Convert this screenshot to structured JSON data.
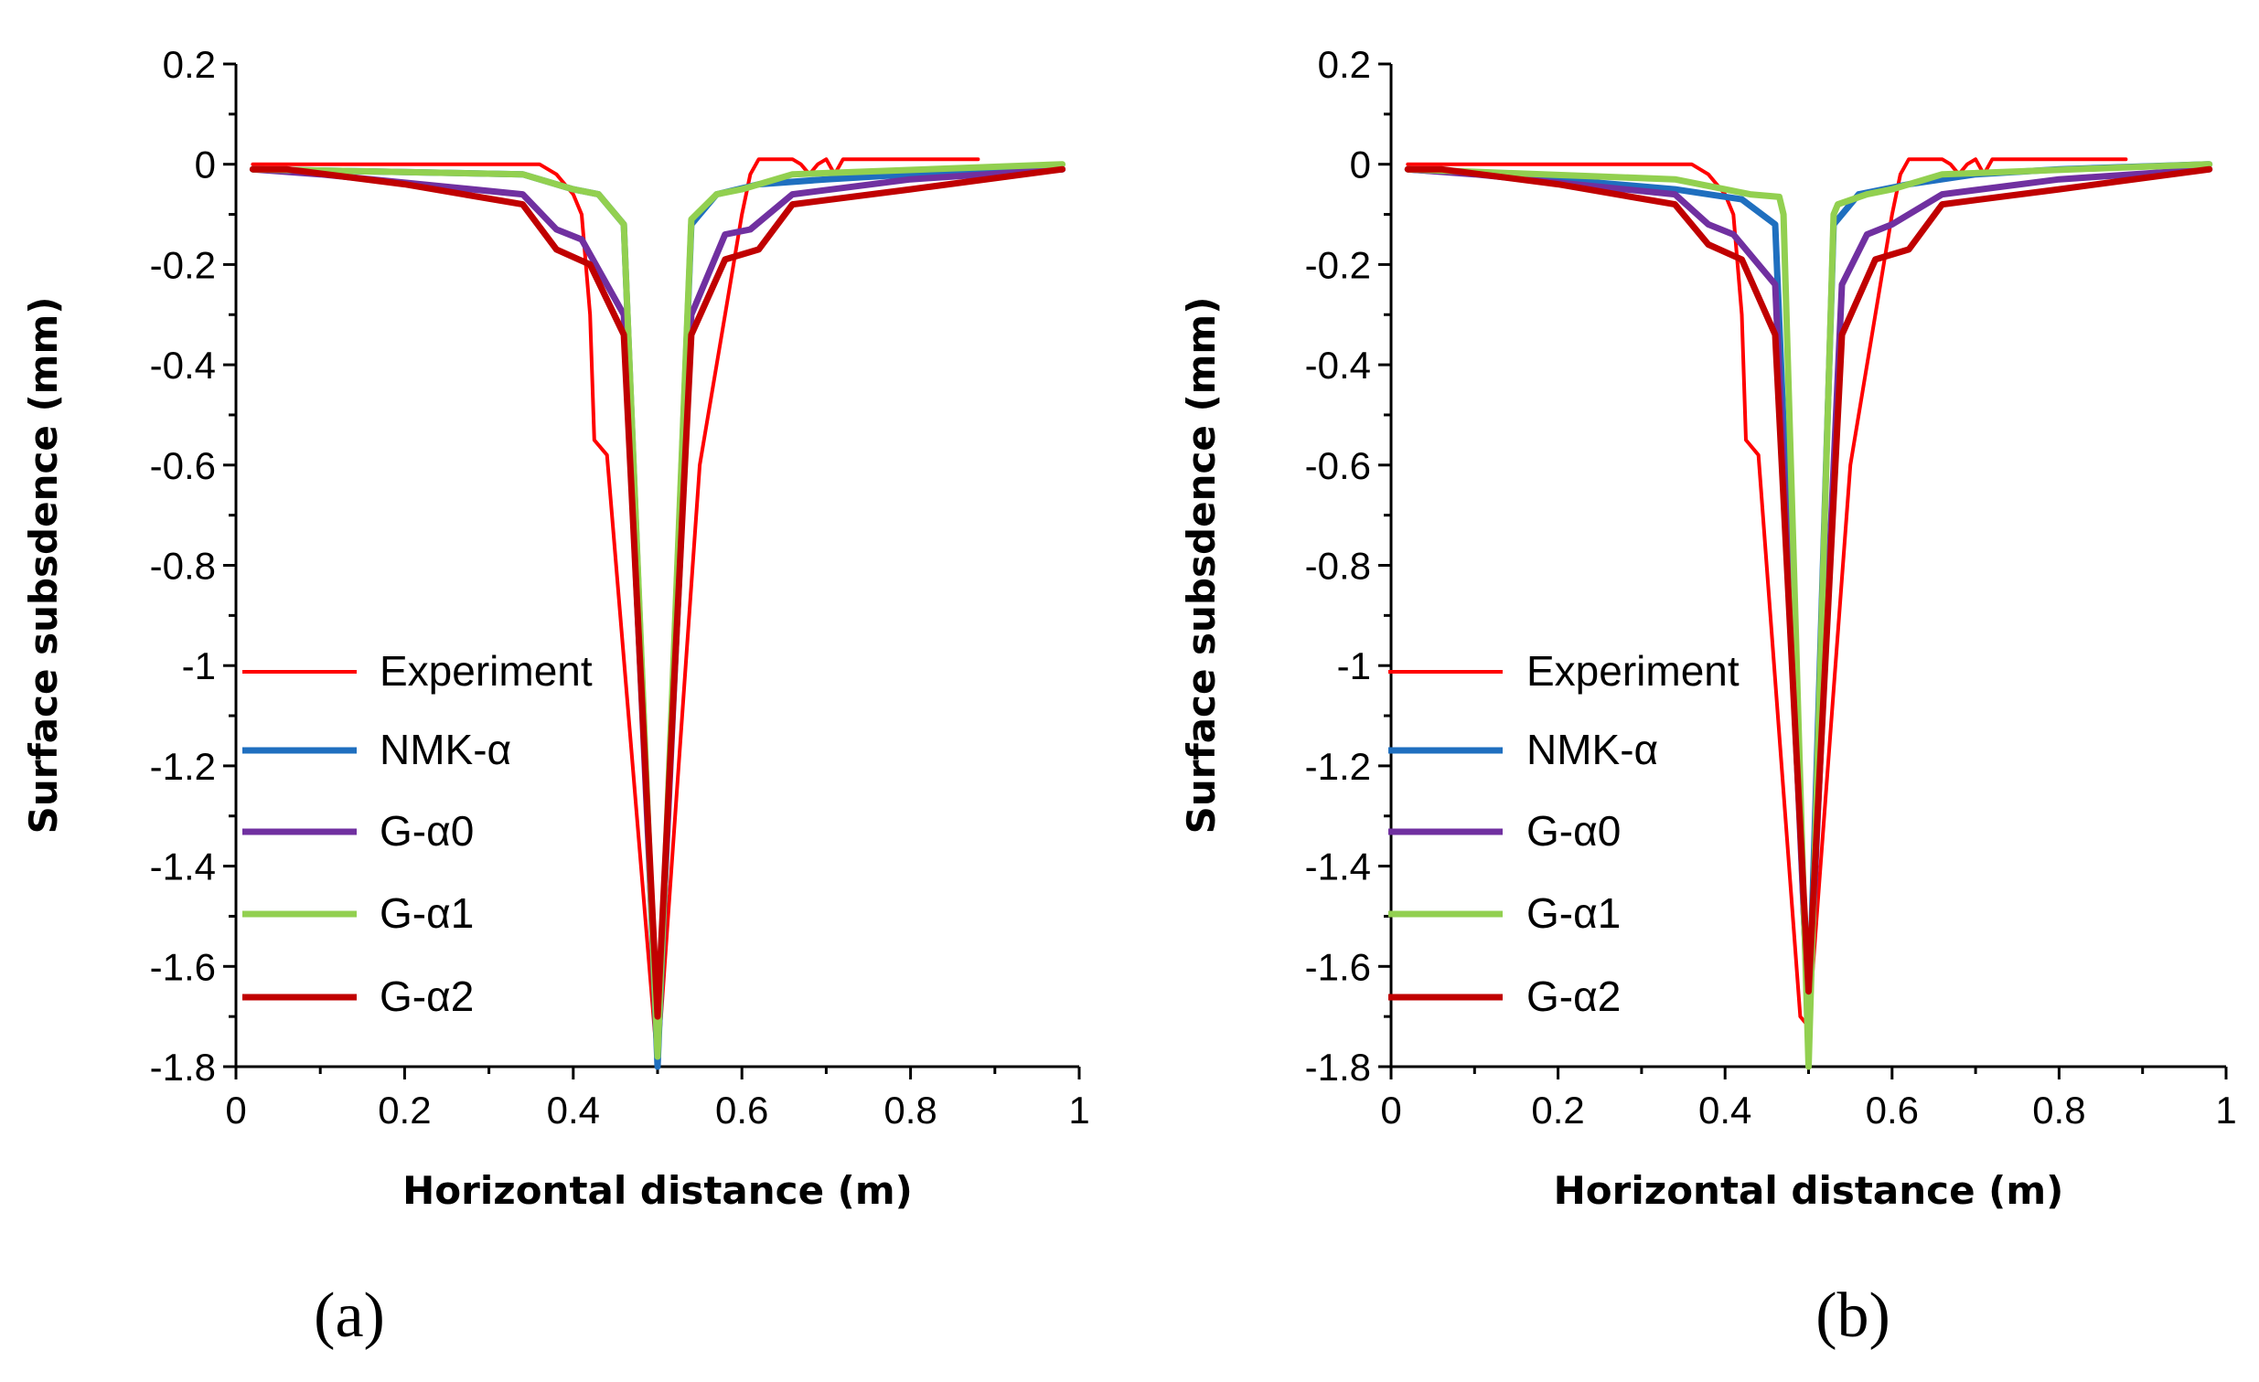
{
  "chart_data": [
    {
      "type": "line",
      "panel": "a",
      "panel_label": "(a)",
      "xlabel": "Horizontal distance (m)",
      "ylabel": "Surface subsdence (mm)",
      "xlim": [
        0,
        1
      ],
      "ylim": [
        -1.8,
        0.2
      ],
      "x_ticks": [
        0,
        0.2,
        0.4,
        0.6,
        0.8,
        1
      ],
      "x_tick_labels": [
        "0",
        "0.2",
        "0.4",
        "0.6",
        "0.8",
        "1"
      ],
      "y_ticks": [
        0.2,
        0,
        -0.2,
        -0.4,
        -0.6,
        -0.8,
        -1,
        -1.2,
        -1.4,
        -1.6,
        -1.8
      ],
      "y_tick_labels": [
        "0.2",
        "0",
        "-0.2",
        "-0.4",
        "-0.6",
        "-0.8",
        "-1",
        "-1.2",
        "-1.4",
        "-1.6",
        "-1.8"
      ],
      "grid": false,
      "legend_position": "bottom-left",
      "series": [
        {
          "name": "Experiment",
          "color": "#ff0000",
          "points": [
            [
              0.02,
              0
            ],
            [
              0.3,
              0
            ],
            [
              0.36,
              0
            ],
            [
              0.38,
              -0.02
            ],
            [
              0.4,
              -0.06
            ],
            [
              0.41,
              -0.1
            ],
            [
              0.42,
              -0.3
            ],
            [
              0.425,
              -0.55
            ],
            [
              0.44,
              -0.58
            ],
            [
              0.5,
              -1.8
            ],
            [
              0.55,
              -0.6
            ],
            [
              0.58,
              -0.3
            ],
            [
              0.6,
              -0.1
            ],
            [
              0.61,
              -0.02
            ],
            [
              0.62,
              0.01
            ],
            [
              0.66,
              0.01
            ],
            [
              0.67,
              0
            ],
            [
              0.68,
              -0.02
            ],
            [
              0.69,
              0
            ],
            [
              0.7,
              0.01
            ],
            [
              0.71,
              -0.02
            ],
            [
              0.72,
              0.01
            ],
            [
              0.88,
              0.01
            ]
          ]
        },
        {
          "name": "NMK-α",
          "color": "#1f6fbf",
          "points": [
            [
              0.02,
              -0.01
            ],
            [
              0.34,
              -0.02
            ],
            [
              0.4,
              -0.05
            ],
            [
              0.43,
              -0.06
            ],
            [
              0.46,
              -0.12
            ],
            [
              0.5,
              -1.8
            ],
            [
              0.54,
              -0.12
            ],
            [
              0.57,
              -0.06
            ],
            [
              0.62,
              -0.04
            ],
            [
              0.7,
              -0.03
            ],
            [
              0.8,
              -0.02
            ],
            [
              0.98,
              -0.01
            ]
          ]
        },
        {
          "name": "G-α0",
          "color": "#7030a0",
          "points": [
            [
              0.02,
              -0.01
            ],
            [
              0.1,
              -0.02
            ],
            [
              0.34,
              -0.06
            ],
            [
              0.38,
              -0.13
            ],
            [
              0.41,
              -0.15
            ],
            [
              0.46,
              -0.3
            ],
            [
              0.5,
              -1.75
            ],
            [
              0.54,
              -0.3
            ],
            [
              0.58,
              -0.14
            ],
            [
              0.61,
              -0.13
            ],
            [
              0.66,
              -0.06
            ],
            [
              0.8,
              -0.03
            ],
            [
              0.98,
              -0.01
            ]
          ]
        },
        {
          "name": "G-α1",
          "color": "#92d050",
          "points": [
            [
              0.02,
              -0.01
            ],
            [
              0.34,
              -0.02
            ],
            [
              0.4,
              -0.05
            ],
            [
              0.43,
              -0.06
            ],
            [
              0.46,
              -0.12
            ],
            [
              0.5,
              -1.78
            ],
            [
              0.54,
              -0.11
            ],
            [
              0.57,
              -0.06
            ],
            [
              0.6,
              -0.05
            ],
            [
              0.66,
              -0.02
            ],
            [
              0.98,
              0
            ]
          ]
        },
        {
          "name": "G-α2",
          "color": "#c00000",
          "points": [
            [
              0.02,
              -0.01
            ],
            [
              0.06,
              -0.01
            ],
            [
              0.2,
              -0.04
            ],
            [
              0.34,
              -0.08
            ],
            [
              0.38,
              -0.17
            ],
            [
              0.42,
              -0.2
            ],
            [
              0.46,
              -0.34
            ],
            [
              0.5,
              -1.7
            ],
            [
              0.54,
              -0.34
            ],
            [
              0.58,
              -0.19
            ],
            [
              0.62,
              -0.17
            ],
            [
              0.66,
              -0.08
            ],
            [
              0.8,
              -0.05
            ],
            [
              0.98,
              -0.01
            ]
          ]
        }
      ]
    },
    {
      "type": "line",
      "panel": "b",
      "panel_label": "(b)",
      "xlabel": "Horizontal distance (m)",
      "ylabel": "Surface subsdence (mm)",
      "xlim": [
        0,
        1
      ],
      "ylim": [
        -1.8,
        0.2
      ],
      "x_ticks": [
        0,
        0.2,
        0.4,
        0.6,
        0.8,
        1
      ],
      "x_tick_labels": [
        "0",
        "0.2",
        "0.4",
        "0.6",
        "0.8",
        "1"
      ],
      "y_ticks": [
        0.2,
        0,
        -0.2,
        -0.4,
        -0.6,
        -0.8,
        -1,
        -1.2,
        -1.4,
        -1.6,
        -1.8
      ],
      "y_tick_labels": [
        "0.2",
        "0",
        "-0.2",
        "-0.4",
        "-0.6",
        "-0.8",
        "-1",
        "-1.2",
        "-1.4",
        "-1.6",
        "-1.8"
      ],
      "grid": false,
      "legend_position": "bottom-left",
      "series": [
        {
          "name": "Experiment",
          "color": "#ff0000",
          "points": [
            [
              0.02,
              0
            ],
            [
              0.3,
              0
            ],
            [
              0.36,
              0
            ],
            [
              0.38,
              -0.02
            ],
            [
              0.4,
              -0.06
            ],
            [
              0.41,
              -0.1
            ],
            [
              0.42,
              -0.3
            ],
            [
              0.425,
              -0.55
            ],
            [
              0.44,
              -0.58
            ],
            [
              0.49,
              -1.7
            ],
            [
              0.5,
              -1.72
            ],
            [
              0.55,
              -0.6
            ],
            [
              0.58,
              -0.3
            ],
            [
              0.6,
              -0.1
            ],
            [
              0.61,
              -0.02
            ],
            [
              0.62,
              0.01
            ],
            [
              0.66,
              0.01
            ],
            [
              0.67,
              0
            ],
            [
              0.68,
              -0.02
            ],
            [
              0.69,
              0
            ],
            [
              0.7,
              0.01
            ],
            [
              0.71,
              -0.02
            ],
            [
              0.72,
              0.01
            ],
            [
              0.88,
              0.01
            ]
          ]
        },
        {
          "name": "NMK-α",
          "color": "#1f6fbf",
          "points": [
            [
              0.02,
              -0.01
            ],
            [
              0.2,
              -0.03
            ],
            [
              0.34,
              -0.05
            ],
            [
              0.42,
              -0.07
            ],
            [
              0.46,
              -0.12
            ],
            [
              0.5,
              -1.72
            ],
            [
              0.53,
              -0.12
            ],
            [
              0.56,
              -0.06
            ],
            [
              0.62,
              -0.04
            ],
            [
              0.7,
              -0.02
            ],
            [
              0.8,
              -0.01
            ],
            [
              0.98,
              0
            ]
          ]
        },
        {
          "name": "G-α0",
          "color": "#7030a0",
          "points": [
            [
              0.02,
              -0.01
            ],
            [
              0.1,
              -0.02
            ],
            [
              0.34,
              -0.06
            ],
            [
              0.38,
              -0.12
            ],
            [
              0.41,
              -0.14
            ],
            [
              0.46,
              -0.24
            ],
            [
              0.5,
              -1.7
            ],
            [
              0.54,
              -0.24
            ],
            [
              0.57,
              -0.14
            ],
            [
              0.6,
              -0.12
            ],
            [
              0.66,
              -0.06
            ],
            [
              0.8,
              -0.03
            ],
            [
              0.98,
              -0.01
            ]
          ]
        },
        {
          "name": "G-α1",
          "color": "#92d050",
          "points": [
            [
              0.02,
              -0.01
            ],
            [
              0.34,
              -0.03
            ],
            [
              0.4,
              -0.05
            ],
            [
              0.43,
              -0.06
            ],
            [
              0.465,
              -0.065
            ],
            [
              0.47,
              -0.1
            ],
            [
              0.5,
              -1.8
            ],
            [
              0.53,
              -0.1
            ],
            [
              0.535,
              -0.08
            ],
            [
              0.57,
              -0.06
            ],
            [
              0.6,
              -0.05
            ],
            [
              0.66,
              -0.02
            ],
            [
              0.98,
              0
            ]
          ]
        },
        {
          "name": "G-α2",
          "color": "#c00000",
          "points": [
            [
              0.02,
              -0.01
            ],
            [
              0.06,
              -0.01
            ],
            [
              0.2,
              -0.04
            ],
            [
              0.34,
              -0.08
            ],
            [
              0.38,
              -0.16
            ],
            [
              0.42,
              -0.19
            ],
            [
              0.46,
              -0.34
            ],
            [
              0.5,
              -1.65
            ],
            [
              0.54,
              -0.34
            ],
            [
              0.58,
              -0.19
            ],
            [
              0.62,
              -0.17
            ],
            [
              0.66,
              -0.08
            ],
            [
              0.8,
              -0.05
            ],
            [
              0.98,
              -0.01
            ]
          ]
        }
      ]
    }
  ]
}
